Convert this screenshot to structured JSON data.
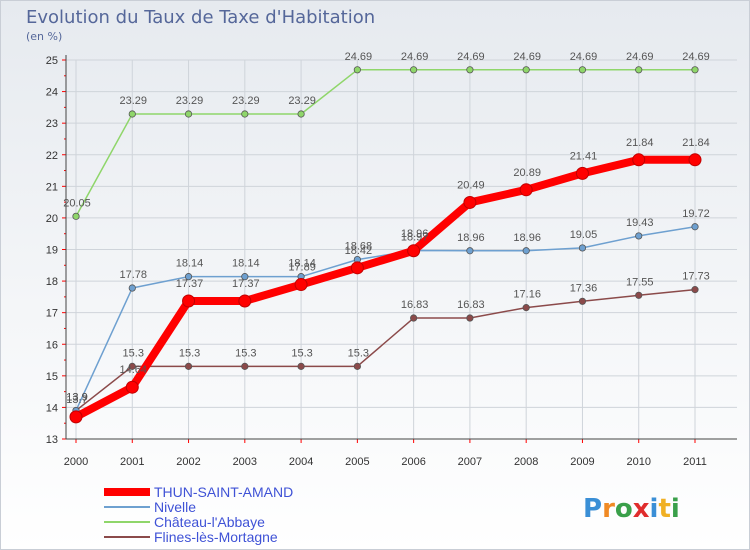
{
  "chart_data": {
    "type": "line",
    "title": "Evolution du Taux de Taxe d'Habitation",
    "subtitle": "(en %)",
    "x": [
      "2000",
      "2001",
      "2002",
      "2003",
      "2004",
      "2005",
      "2006",
      "2007",
      "2008",
      "2009",
      "2010",
      "2011"
    ],
    "ylim": [
      13,
      25
    ],
    "yticks": [
      13,
      14,
      15,
      16,
      17,
      18,
      19,
      20,
      21,
      22,
      23,
      24,
      25
    ],
    "grid": true,
    "legend_position": "bottom-left",
    "series": [
      {
        "name": "THUN-SAINT-AMAND",
        "color": "#ff0000",
        "values": [
          13.7,
          14.64,
          17.37,
          17.37,
          17.89,
          18.42,
          18.96,
          20.49,
          20.89,
          21.41,
          21.84,
          21.84
        ],
        "labels": [
          "13.7",
          "14.64",
          "17.37",
          "17.37",
          "17.89",
          "18.42",
          "18.96",
          "20.49",
          "20.89",
          "21.41",
          "21.84",
          "21.84"
        ]
      },
      {
        "name": "Nivelle",
        "color": "#6ea0d0",
        "values": [
          13.9,
          17.78,
          18.14,
          18.14,
          18.14,
          18.68,
          18.97,
          18.96,
          18.96,
          19.05,
          19.43,
          19.72
        ],
        "labels": [
          "13.9",
          "17.78",
          "18.14",
          "18.14",
          "18.14",
          "18.68",
          "18.97",
          "18.96",
          "18.96",
          "19.05",
          "19.43",
          "19.72"
        ]
      },
      {
        "name": "Château-l'Abbaye",
        "color": "#8fd66a",
        "values": [
          20.05,
          23.29,
          23.29,
          23.29,
          23.29,
          24.69,
          24.69,
          24.69,
          24.69,
          24.69,
          24.69,
          24.69
        ],
        "labels": [
          "20.05",
          "23.29",
          "23.29",
          "23.29",
          "23.29",
          "24.69",
          "24.69",
          "24.69",
          "24.69",
          "24.69",
          "24.69",
          "24.69"
        ]
      },
      {
        "name": "Flines-lès-Mortagne",
        "color": "#8b4a4a",
        "values": [
          13.9,
          15.3,
          15.3,
          15.3,
          15.3,
          15.3,
          16.83,
          16.83,
          17.16,
          17.36,
          17.55,
          17.73
        ],
        "labels": [
          "13.9",
          "15.3",
          "15.3",
          "15.3",
          "15.3",
          "15.3",
          "16.83",
          "16.83",
          "17.16",
          "17.36",
          "17.55",
          "17.73"
        ]
      }
    ]
  },
  "logo": {
    "text": "Proxiti"
  }
}
